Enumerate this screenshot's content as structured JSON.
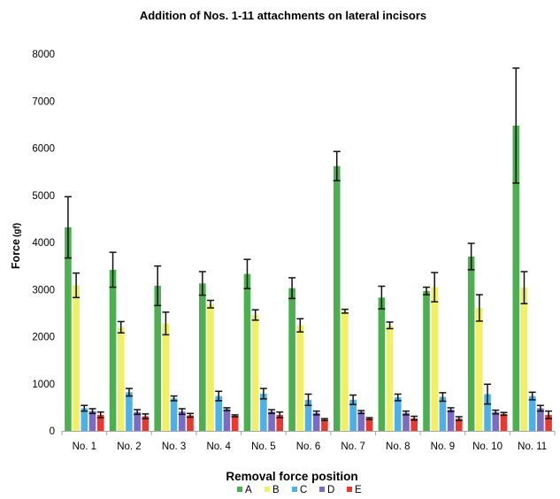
{
  "chart_data": {
    "type": "bar",
    "title": "Addition of Nos. 1-11 attachments on lateral incisors",
    "ylabel": "Force",
    "yunit": "(gf)",
    "xlabel": "",
    "legend_title": "Removal force position",
    "legend_position": "bottom",
    "ylim": [
      0,
      8000
    ],
    "yticks": [
      0,
      1000,
      2000,
      3000,
      4000,
      5000,
      6000,
      7000,
      8000
    ],
    "grid": false,
    "categories": [
      "No. 1",
      "No. 2",
      "No. 3",
      "No. 4",
      "No. 5",
      "No. 6",
      "No. 7",
      "No. 8",
      "No. 9",
      "No. 10",
      "No. 11"
    ],
    "series": [
      {
        "name": "A",
        "color": "#4caf50",
        "values": [
          4320,
          3420,
          3080,
          3130,
          3330,
          3030,
          5620,
          2830,
          2970,
          3700,
          6480
        ],
        "errors": [
          650,
          370,
          420,
          250,
          310,
          220,
          310,
          240,
          80,
          280,
          1220
        ]
      },
      {
        "name": "B",
        "color": "#f1ef62",
        "values": [
          3090,
          2200,
          2280,
          2690,
          2460,
          2240,
          2540,
          2240,
          3050,
          2610,
          3040
        ],
        "errors": [
          260,
          120,
          240,
          80,
          110,
          140,
          40,
          70,
          310,
          280,
          340
        ]
      },
      {
        "name": "C",
        "color": "#4eb0e8",
        "values": [
          480,
          820,
          690,
          740,
          790,
          660,
          660,
          710,
          720,
          780,
          740
        ],
        "errors": [
          60,
          80,
          50,
          100,
          110,
          120,
          100,
          70,
          90,
          210,
          80
        ]
      },
      {
        "name": "D",
        "color": "#7c6bc4",
        "values": [
          420,
          400,
          410,
          460,
          410,
          380,
          400,
          380,
          450,
          400,
          480
        ],
        "errors": [
          50,
          50,
          60,
          30,
          40,
          40,
          30,
          40,
          40,
          40,
          60
        ]
      },
      {
        "name": "E",
        "color": "#e8392f",
        "values": [
          340,
          310,
          330,
          320,
          340,
          240,
          260,
          270,
          260,
          360,
          340
        ],
        "errors": [
          60,
          50,
          40,
          20,
          60,
          20,
          20,
          40,
          40,
          30,
          80
        ]
      }
    ]
  }
}
